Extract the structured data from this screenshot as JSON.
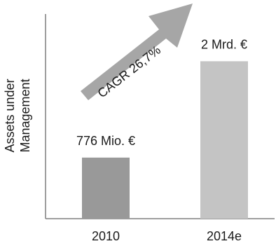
{
  "chart_data": {
    "type": "bar",
    "categories": [
      "2010",
      "2014e"
    ],
    "values": [
      0.776,
      2.0
    ],
    "value_labels": [
      "776 Mio. €",
      "2 Mrd. €"
    ],
    "ylabel": [
      "Assets under",
      "Management"
    ],
    "annotation": "CAGR 26,7%",
    "ylim": [
      0,
      2.6
    ],
    "grid": false
  },
  "colors": {
    "bars": [
      "#999999",
      "#c4c4c4"
    ],
    "arrow": "#a6a6a6",
    "axis": "#7f7f7f"
  }
}
